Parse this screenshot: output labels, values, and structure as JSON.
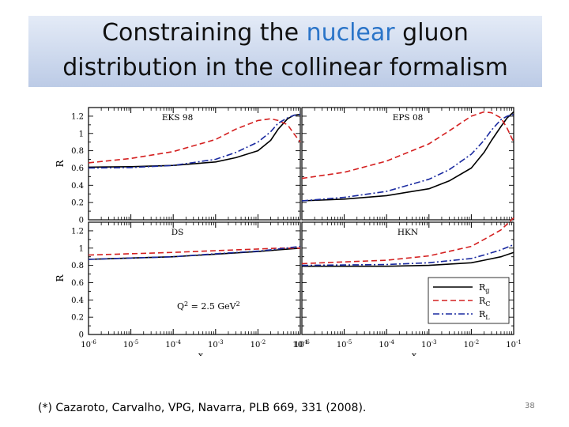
{
  "slide": {
    "title_line1_pre": "Constraining the ",
    "title_line1_highlight": "nuclear",
    "title_line1_post": " gluon",
    "title_line2": "distribution in the collinear formalism",
    "caption": "(*) Cazaroto, Carvalho, VPG, Navarra, PLB 669, 331 (2008).",
    "slide_number": "38",
    "highlight_color": "#2a74c8"
  },
  "chart_data": {
    "type": "line",
    "layout": "2x2 panels, shared axes",
    "ylabel": "R",
    "xlabel": "x",
    "xscale": "log",
    "xlim": [
      1e-06,
      0.1
    ],
    "ylim": [
      0,
      1.3
    ],
    "x_tick_labels": [
      "10-6",
      "10-5",
      "10-4",
      "10-3",
      "10-2",
      "10-1"
    ],
    "y_tick_labels": [
      "0",
      "0.2",
      "0.4",
      "0.6",
      "0.8",
      "1",
      "1.2"
    ],
    "annotation": "Q2 = 2.5 GeV2",
    "legend": {
      "placement": "bottom-right panel, lower-right",
      "entries": [
        {
          "label": "Rg",
          "main": "R",
          "sub": "g",
          "color": "#000000",
          "style": "solid"
        },
        {
          "label": "RC",
          "main": "R",
          "sub": "C",
          "color": "#d42020",
          "style": "dashed"
        },
        {
          "label": "RL",
          "main": "R",
          "sub": "L",
          "color": "#1a2aa0",
          "style": "dashdot"
        }
      ]
    },
    "panels": [
      {
        "title": "EKS 98",
        "x": [
          1e-06,
          1e-05,
          0.0001,
          0.001,
          0.003,
          0.01,
          0.02,
          0.03,
          0.05,
          0.07,
          0.1
        ],
        "series": [
          {
            "name": "Rg",
            "values": [
              0.61,
              0.615,
              0.63,
              0.67,
              0.72,
              0.8,
              0.92,
              1.05,
              1.17,
              1.21,
              1.22
            ]
          },
          {
            "name": "RC",
            "values": [
              0.66,
              0.71,
              0.79,
              0.93,
              1.05,
              1.15,
              1.17,
              1.15,
              1.1,
              1.0,
              0.9
            ]
          },
          {
            "name": "RL",
            "values": [
              0.6,
              0.605,
              0.63,
              0.7,
              0.78,
              0.9,
              1.02,
              1.12,
              1.18,
              1.21,
              1.22
            ]
          }
        ]
      },
      {
        "title": "EPS 08",
        "x": [
          1e-06,
          1e-05,
          0.0001,
          0.001,
          0.003,
          0.01,
          0.02,
          0.03,
          0.05,
          0.07,
          0.1
        ],
        "series": [
          {
            "name": "Rg",
            "values": [
              0.22,
              0.24,
              0.28,
              0.36,
              0.45,
              0.6,
              0.78,
              0.92,
              1.08,
              1.18,
              1.25
            ]
          },
          {
            "name": "RC",
            "values": [
              0.48,
              0.55,
              0.68,
              0.88,
              1.03,
              1.2,
              1.25,
              1.24,
              1.18,
              1.06,
              0.9
            ]
          },
          {
            "name": "RL",
            "values": [
              0.22,
              0.26,
              0.33,
              0.47,
              0.58,
              0.76,
              0.92,
              1.04,
              1.16,
              1.2,
              1.22
            ]
          }
        ]
      },
      {
        "title": "DS",
        "x": [
          1e-06,
          1e-05,
          0.0001,
          0.001,
          0.01,
          0.03,
          0.1
        ],
        "series": [
          {
            "name": "Rg",
            "values": [
              0.87,
              0.885,
              0.9,
              0.93,
              0.96,
              0.98,
              1.0
            ]
          },
          {
            "name": "RC",
            "values": [
              0.92,
              0.935,
              0.95,
              0.97,
              0.99,
              1.0,
              1.0
            ]
          },
          {
            "name": "RL",
            "values": [
              0.87,
              0.885,
              0.9,
              0.935,
              0.965,
              0.99,
              1.02
            ]
          }
        ]
      },
      {
        "title": "HKN",
        "x": [
          1e-06,
          1e-05,
          0.0001,
          0.001,
          0.01,
          0.02,
          0.05,
          0.1
        ],
        "series": [
          {
            "name": "Rg",
            "values": [
              0.79,
              0.79,
              0.79,
              0.8,
              0.83,
              0.86,
              0.9,
              0.95
            ]
          },
          {
            "name": "RC",
            "values": [
              0.82,
              0.84,
              0.86,
              0.91,
              1.02,
              1.1,
              1.21,
              1.35
            ]
          },
          {
            "name": "RL",
            "values": [
              0.8,
              0.805,
              0.81,
              0.83,
              0.88,
              0.92,
              0.98,
              1.04
            ]
          }
        ]
      }
    ]
  }
}
